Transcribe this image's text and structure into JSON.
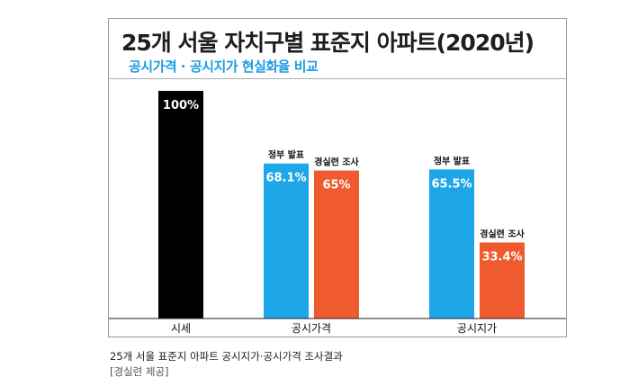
{
  "chart_data": {
    "type": "bar",
    "title": "25개 서울 자치구별 표준지 아파트(2020년)",
    "subtitle": "공시가격 · 공시지가 현실화율 비교",
    "groups": [
      {
        "category": "시세",
        "bars": [
          {
            "value": 100,
            "label": "100%",
            "series_label": "",
            "color": "#000000"
          }
        ]
      },
      {
        "category": "공시가격",
        "bars": [
          {
            "value": 68.1,
            "label": "68.1%",
            "series_label": "정부 발표",
            "color": "#1ea7e8"
          },
          {
            "value": 65,
            "label": "65%",
            "series_label": "경실련 조사",
            "color": "#ef5a2f"
          }
        ]
      },
      {
        "category": "공시지가",
        "bars": [
          {
            "value": 65.5,
            "label": "65.5%",
            "series_label": "정부 발표",
            "color": "#1ea7e8"
          },
          {
            "value": 33.4,
            "label": "33.4%",
            "series_label": "경실련 조사",
            "color": "#ef5a2f"
          }
        ]
      }
    ],
    "ylim": [
      0,
      100
    ]
  },
  "caption": "25개 서울 표준지 아파트 공시지가·공시가격 조사결과",
  "credit": "[경실련 제공]"
}
